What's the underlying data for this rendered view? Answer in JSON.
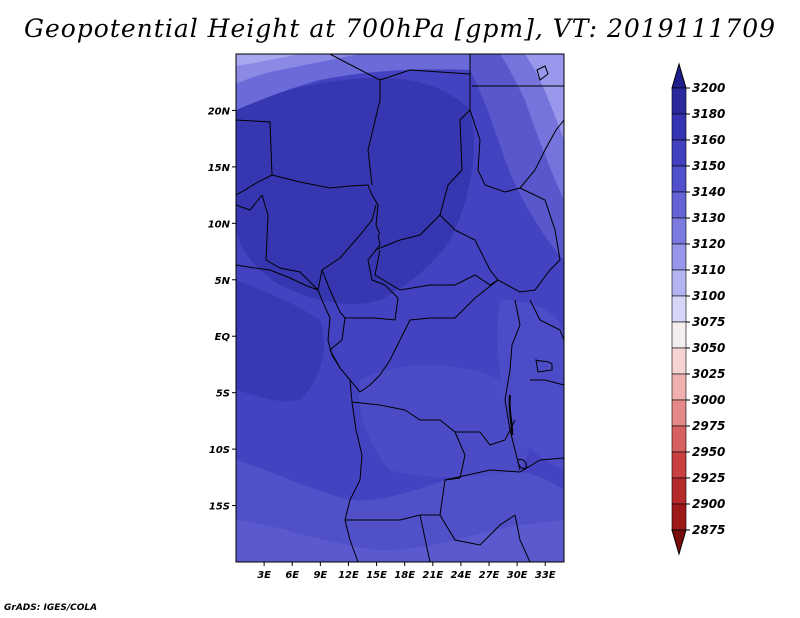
{
  "title": "Geopotential Height at 700hPa [gpm], VT: 2019111709",
  "footer": "GrADS: IGES/COLA",
  "map": {
    "lat_labels": [
      "20N",
      "15N",
      "10N",
      "5N",
      "EQ",
      "5S",
      "10S",
      "15S"
    ],
    "lon_labels": [
      "3E",
      "6E",
      "9E",
      "12E",
      "15E",
      "18E",
      "21E",
      "24E",
      "27E",
      "30E",
      "33E"
    ],
    "lat_values": [
      20,
      15,
      10,
      5,
      0,
      -5,
      -10,
      -15
    ],
    "lon_values": [
      3,
      6,
      9,
      12,
      15,
      18,
      21,
      24,
      27,
      30,
      33
    ],
    "extent": {
      "lon_min": 0,
      "lon_max": 35,
      "lat_min": -20,
      "lat_max": 25
    }
  },
  "colorbar": {
    "levels": [
      "3200",
      "3180",
      "3160",
      "3150",
      "3140",
      "3130",
      "3120",
      "3110",
      "3100",
      "3075",
      "3050",
      "3025",
      "3000",
      "2975",
      "2950",
      "2925",
      "2900",
      "2875"
    ],
    "colors": [
      "#1e1e8c",
      "#2a2a9e",
      "#3434b2",
      "#4040c0",
      "#5050cc",
      "#6464d6",
      "#7a7ae0",
      "#9696ea",
      "#b4b4f2",
      "#d6d6f8",
      "#f4eeee",
      "#f7d4d4",
      "#f0b0b0",
      "#e58888",
      "#d86060",
      "#c84040",
      "#b52a2a",
      "#9e1818",
      "#7c0c0c"
    ]
  },
  "colors": {
    "deep_purple": "#3a3ab0",
    "mid_purple": "#4848c6",
    "light_purple": "#6060d2",
    "pale_purple": "#8080e0",
    "palest_purple": "#a0a0ee"
  }
}
